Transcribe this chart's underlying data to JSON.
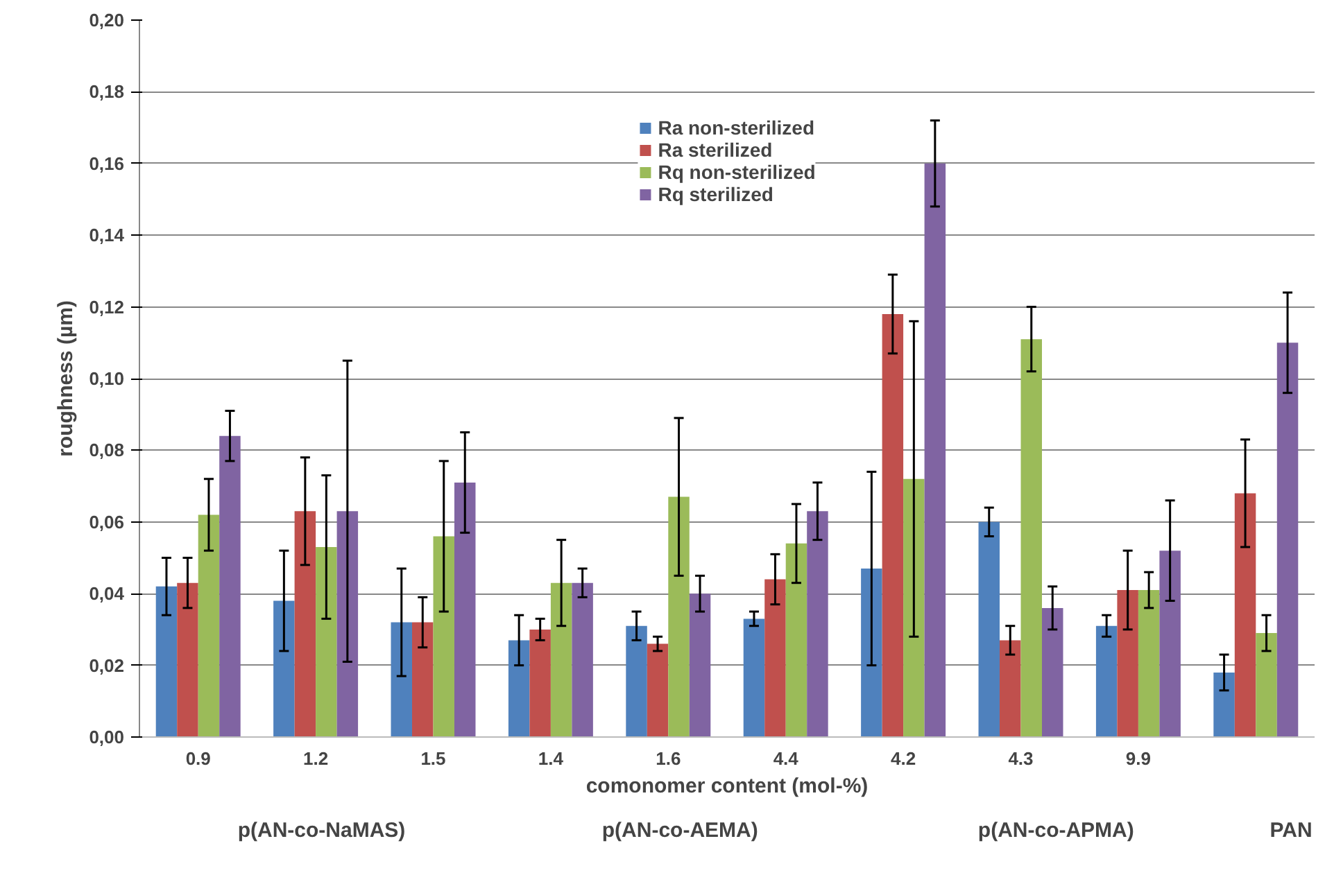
{
  "chart_data": {
    "type": "bar",
    "xlabel": "comonomer content (mol-%)",
    "ylabel": "roughness (µm)",
    "categories": [
      "0.9",
      "1.2",
      "1.5",
      "1.4",
      "1.6",
      "4.4",
      "4.2",
      "4.3",
      "9.9",
      null
    ],
    "series": [
      {
        "name": "Ra non-sterilized",
        "color": "#4f81bd",
        "values": [
          0.042,
          0.038,
          0.032,
          0.027,
          0.031,
          0.033,
          0.047,
          0.06,
          0.031,
          0.018
        ],
        "errors": [
          [
            0.034,
            0.05
          ],
          [
            0.024,
            0.052
          ],
          [
            0.017,
            0.047
          ],
          [
            0.02,
            0.034
          ],
          [
            0.027,
            0.035
          ],
          [
            0.031,
            0.035
          ],
          [
            0.02,
            0.074
          ],
          [
            0.056,
            0.064
          ],
          [
            0.028,
            0.034
          ],
          [
            0.013,
            0.023
          ]
        ]
      },
      {
        "name": "Ra sterilized",
        "color": "#c0504d",
        "values": [
          0.043,
          0.063,
          0.032,
          0.03,
          0.026,
          0.044,
          0.118,
          0.027,
          0.041,
          0.068
        ],
        "errors": [
          [
            0.036,
            0.05
          ],
          [
            0.048,
            0.078
          ],
          [
            0.025,
            0.039
          ],
          [
            0.027,
            0.033
          ],
          [
            0.024,
            0.028
          ],
          [
            0.037,
            0.051
          ],
          [
            0.107,
            0.129
          ],
          [
            0.023,
            0.031
          ],
          [
            0.03,
            0.052
          ],
          [
            0.053,
            0.083
          ]
        ]
      },
      {
        "name": "Rq non-sterilized",
        "color": "#9bbb59",
        "values": [
          0.062,
          0.053,
          0.056,
          0.043,
          0.067,
          0.054,
          0.072,
          0.111,
          0.041,
          0.029
        ],
        "errors": [
          [
            0.052,
            0.072
          ],
          [
            0.033,
            0.073
          ],
          [
            0.035,
            0.077
          ],
          [
            0.031,
            0.055
          ],
          [
            0.045,
            0.089
          ],
          [
            0.043,
            0.065
          ],
          [
            0.028,
            0.116
          ],
          [
            0.102,
            0.12
          ],
          [
            0.036,
            0.046
          ],
          [
            0.024,
            0.034
          ]
        ]
      },
      {
        "name": "Rq sterilized",
        "color": "#8064a2",
        "values": [
          0.084,
          0.063,
          0.071,
          0.043,
          0.04,
          0.063,
          0.16,
          0.036,
          0.052,
          0.11
        ],
        "errors": [
          [
            0.077,
            0.091
          ],
          [
            0.021,
            0.105
          ],
          [
            0.057,
            0.085
          ],
          [
            0.039,
            0.047
          ],
          [
            0.035,
            0.045
          ],
          [
            0.055,
            0.071
          ],
          [
            0.148,
            0.172
          ],
          [
            0.03,
            0.042
          ],
          [
            0.038,
            0.066
          ],
          [
            0.096,
            0.124
          ]
        ]
      }
    ],
    "ylim": [
      0,
      0.2
    ],
    "yticks": [
      {
        "value": 0,
        "label": "0,00"
      },
      {
        "value": 0.02,
        "label": "0,02"
      },
      {
        "value": 0.04,
        "label": "0,04"
      },
      {
        "value": 0.06,
        "label": "0,06"
      },
      {
        "value": 0.08,
        "label": "0,08"
      },
      {
        "value": 0.1,
        "label": "0,10"
      },
      {
        "value": 0.12,
        "label": "0,12"
      },
      {
        "value": 0.14,
        "label": "0,14"
      },
      {
        "value": 0.16,
        "label": "0,16"
      },
      {
        "value": 0.18,
        "label": "0,18"
      },
      {
        "value": 0.2,
        "label": "0,20"
      }
    ],
    "grid": "y",
    "legend": "top",
    "annotations": [
      "p(AN-co-NaMAS)",
      "p(AN-co-AEMA)",
      "p(AN-co-APMA)",
      "PAN"
    ]
  }
}
